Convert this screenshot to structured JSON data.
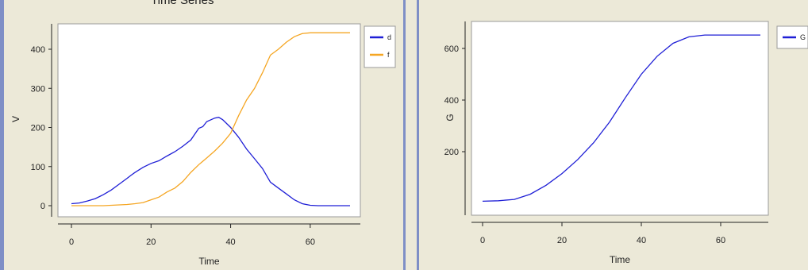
{
  "window": {
    "partial_title": "Time Series"
  },
  "chart_data": [
    {
      "type": "line",
      "title": "",
      "xlabel": "Time",
      "ylabel": "V",
      "xlim": [
        0,
        70
      ],
      "ylim": [
        0,
        450
      ],
      "xticks": [
        0,
        20,
        40,
        60
      ],
      "yticks": [
        0,
        100,
        200,
        300,
        400
      ],
      "legend_position": "right",
      "series": [
        {
          "name": "d",
          "color": "#1f1fd6",
          "x": [
            0,
            2,
            4,
            6,
            8,
            10,
            12,
            14,
            15,
            16,
            18,
            20,
            22,
            24,
            26,
            28,
            30,
            32,
            33,
            34,
            36,
            37,
            38,
            40,
            42,
            44,
            46,
            48,
            50,
            52,
            54,
            56,
            58,
            60,
            62,
            65,
            68,
            70
          ],
          "y": [
            5,
            7,
            12,
            18,
            28,
            40,
            55,
            70,
            78,
            85,
            98,
            108,
            115,
            127,
            138,
            152,
            168,
            198,
            202,
            215,
            224,
            226,
            220,
            200,
            175,
            145,
            120,
            95,
            60,
            45,
            30,
            15,
            5,
            1,
            0,
            0,
            0,
            0
          ]
        },
        {
          "name": "f",
          "color": "#f5a623",
          "x": [
            0,
            4,
            8,
            12,
            14,
            16,
            18,
            20,
            22,
            24,
            26,
            28,
            30,
            32,
            34,
            36,
            38,
            40,
            42,
            44,
            46,
            48,
            50,
            52,
            54,
            56,
            58,
            60,
            62,
            65,
            68,
            70
          ],
          "y": [
            0,
            0,
            0,
            2,
            3,
            5,
            8,
            15,
            22,
            35,
            45,
            62,
            85,
            105,
            122,
            140,
            160,
            185,
            230,
            270,
            300,
            340,
            385,
            400,
            418,
            432,
            440,
            442,
            442,
            442,
            442,
            442
          ]
        }
      ]
    },
    {
      "type": "line",
      "title": "",
      "xlabel": "Time",
      "ylabel": "G",
      "xlim": [
        0,
        70
      ],
      "ylim": [
        0,
        660
      ],
      "xticks": [
        0,
        20,
        40,
        60
      ],
      "yticks": [
        200,
        400,
        600
      ],
      "legend_position": "right",
      "series": [
        {
          "name": "G",
          "color": "#1f1fd6",
          "x": [
            0,
            4,
            8,
            12,
            16,
            20,
            24,
            28,
            32,
            36,
            40,
            44,
            48,
            52,
            56,
            60,
            65,
            70
          ],
          "y": [
            8,
            10,
            15,
            35,
            70,
            115,
            170,
            235,
            315,
            410,
            500,
            570,
            620,
            645,
            652,
            652,
            652,
            652
          ]
        }
      ]
    }
  ]
}
